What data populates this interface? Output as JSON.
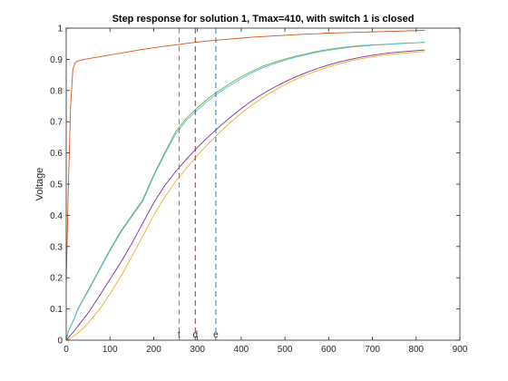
{
  "chart_data": {
    "type": "line",
    "title": "Step response for solution 1, Tmax=410, with switch 1 is closed",
    "xlabel": "",
    "ylabel": "Voltage",
    "xlim": [
      0,
      900
    ],
    "ylim": [
      0,
      1
    ],
    "xticks": [
      0,
      100,
      200,
      300,
      400,
      500,
      600,
      700,
      800,
      900
    ],
    "yticks": [
      0,
      0.1,
      0.2,
      0.3,
      0.4,
      0.5,
      0.6,
      0.7,
      0.8,
      0.9,
      1
    ],
    "xtick_labels": [
      "0",
      "100",
      "200",
      "300",
      "400",
      "500",
      "600",
      "700",
      "800",
      "900"
    ],
    "ytick_labels": [
      "0",
      "0.1",
      "0.2",
      "0.3",
      "0.4",
      "0.5",
      "0.6",
      "0.7",
      "0.8",
      "0.9",
      "1"
    ],
    "grid": false,
    "legend": "none",
    "x": [
      0,
      5,
      10,
      15,
      20,
      25,
      30,
      40,
      50,
      75,
      100,
      125,
      150,
      175,
      200,
      225,
      250,
      275,
      300,
      325,
      350,
      375,
      400,
      425,
      450,
      475,
      500,
      525,
      550,
      575,
      600,
      625,
      650,
      675,
      700,
      725,
      750,
      775,
      800,
      820
    ],
    "series": [
      {
        "color": "#d95319",
        "values": [
          0.19,
          0.5,
          0.75,
          0.865,
          0.888,
          0.894,
          0.896,
          0.899,
          0.902,
          0.908,
          0.914,
          0.92,
          0.926,
          0.932,
          0.937,
          0.942,
          0.946,
          0.951,
          0.955,
          0.959,
          0.962,
          0.965,
          0.968,
          0.971,
          0.973,
          0.975,
          0.977,
          0.979,
          0.981,
          0.982,
          0.984,
          0.985,
          0.986,
          0.987,
          0.988,
          0.989,
          0.99,
          0.991,
          0.992,
          0.993
        ]
      },
      {
        "color": "#77ac30",
        "values": [
          0.0,
          0.03,
          0.045,
          0.06,
          0.075,
          0.095,
          0.11,
          0.135,
          0.16,
          0.225,
          0.29,
          0.35,
          0.4,
          0.45,
          0.53,
          0.6,
          0.668,
          0.712,
          0.745,
          0.775,
          0.8,
          0.823,
          0.844,
          0.862,
          0.878,
          0.89,
          0.901,
          0.91,
          0.918,
          0.926,
          0.932,
          0.937,
          0.941,
          0.944,
          0.946,
          0.948,
          0.95,
          0.952,
          0.953,
          0.955
        ]
      },
      {
        "color": "#4dbeee",
        "values": [
          0.0,
          0.028,
          0.043,
          0.058,
          0.073,
          0.092,
          0.107,
          0.132,
          0.156,
          0.222,
          0.286,
          0.346,
          0.396,
          0.445,
          0.526,
          0.595,
          0.66,
          0.705,
          0.738,
          0.768,
          0.794,
          0.817,
          0.838,
          0.857,
          0.873,
          0.886,
          0.897,
          0.907,
          0.915,
          0.923,
          0.929,
          0.934,
          0.939,
          0.942,
          0.945,
          0.947,
          0.949,
          0.951,
          0.953,
          0.954
        ]
      },
      {
        "color": "#7e2f8e",
        "values": [
          0.0,
          0.008,
          0.016,
          0.024,
          0.033,
          0.042,
          0.051,
          0.069,
          0.087,
          0.14,
          0.195,
          0.25,
          0.31,
          0.375,
          0.44,
          0.495,
          0.54,
          0.58,
          0.618,
          0.652,
          0.684,
          0.714,
          0.742,
          0.768,
          0.79,
          0.81,
          0.828,
          0.844,
          0.858,
          0.871,
          0.882,
          0.892,
          0.9,
          0.907,
          0.913,
          0.918,
          0.922,
          0.925,
          0.928,
          0.93
        ]
      },
      {
        "color": "#edb120",
        "values": [
          0.0,
          0.003,
          0.007,
          0.011,
          0.016,
          0.021,
          0.027,
          0.04,
          0.054,
          0.097,
          0.148,
          0.205,
          0.268,
          0.333,
          0.4,
          0.458,
          0.508,
          0.551,
          0.592,
          0.63,
          0.665,
          0.697,
          0.727,
          0.754,
          0.778,
          0.8,
          0.819,
          0.836,
          0.851,
          0.864,
          0.876,
          0.886,
          0.895,
          0.902,
          0.908,
          0.913,
          0.917,
          0.92,
          0.923,
          0.925
        ]
      }
    ],
    "vlines": [
      {
        "x": 258,
        "label": "t",
        "color": "#d95319"
      },
      {
        "x": 295,
        "label": "d",
        "color": "#a2142f"
      },
      {
        "x": 342,
        "label": "e",
        "color": "#0072bd"
      }
    ]
  }
}
